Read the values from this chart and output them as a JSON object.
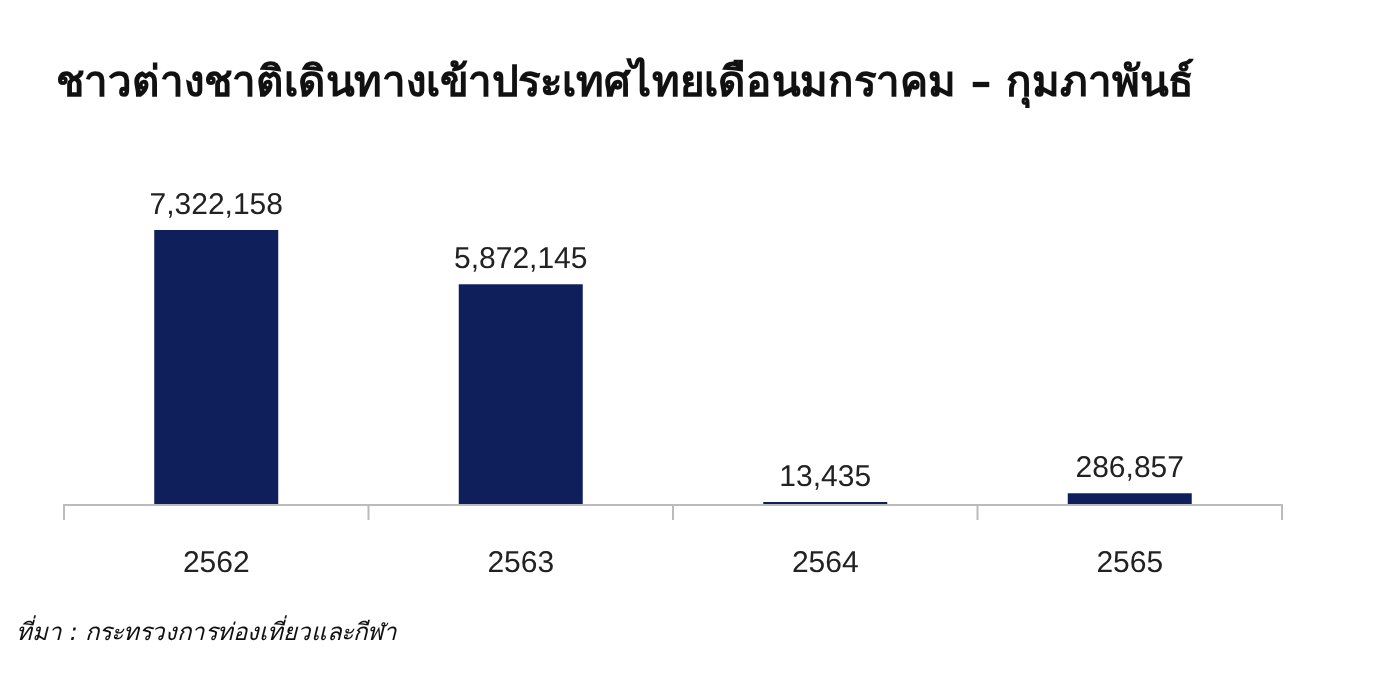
{
  "chart_data": {
    "type": "bar",
    "title": "ชาวต่างชาติเดินทางเข้าประเทศไทยเดือนมกราคม – กุมภาพันธ์",
    "categories": [
      "2562",
      "2563",
      "2564",
      "2565"
    ],
    "values": [
      7322158,
      5872145,
      13435,
      286857
    ],
    "color": "#0f1f5c",
    "value_labels": [
      "7,322,158",
      "5,872,145",
      "13,435",
      "286,857"
    ],
    "annotations": [
      "ที่มา : กระทรวงการท่องเที่ยวและกีฬา"
    ]
  }
}
